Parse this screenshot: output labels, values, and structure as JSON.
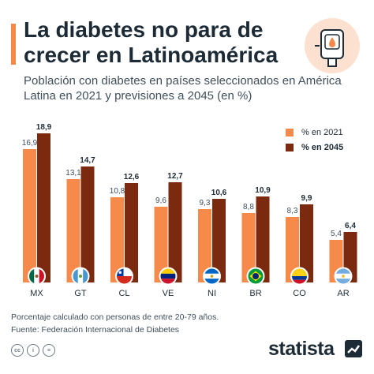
{
  "title": "La diabetes no para de crecer en Latinoamérica",
  "subtitle": "Población con diabetes en países seleccionados en América Latina en 2021 y previsiones a 2045 (en %)",
  "chart_data": {
    "type": "bar",
    "categories": [
      "MX",
      "GT",
      "CL",
      "VE",
      "NI",
      "BR",
      "CO",
      "AR"
    ],
    "series": [
      {
        "name": "% en 2021",
        "values": [
          16.9,
          13.1,
          10.8,
          9.6,
          9.3,
          8.8,
          8.3,
          5.4
        ],
        "color": "#f58a4b"
      },
      {
        "name": "% en 2045",
        "values": [
          18.9,
          14.7,
          12.6,
          12.7,
          10.6,
          10.9,
          9.9,
          6.4
        ],
        "color": "#7b2a0f"
      }
    ],
    "value_labels_2021": [
      "16,9",
      "13,1",
      "10,8",
      "9,6",
      "9,3",
      "8,8",
      "8,3",
      "5,4"
    ],
    "value_labels_2045": [
      "18,9",
      "14,7",
      "12,6",
      "12,7",
      "10,6",
      "10,9",
      "9,9",
      "6,4"
    ],
    "flags": [
      "mexico-flag-icon",
      "guatemala-flag-icon",
      "chile-flag-icon",
      "venezuela-flag-icon",
      "nicaragua-flag-icon",
      "brazil-flag-icon",
      "colombia-flag-icon",
      "argentina-flag-icon"
    ],
    "ylim": [
      0,
      20
    ],
    "grid": false,
    "legend_position": "top-right"
  },
  "legend": {
    "label_2021": "% en 2021",
    "label_2045": "% en 2045"
  },
  "footer": {
    "note": "Porcentaje calculado con personas de entre 20-79 años.",
    "source": "Fuente: Federación Internacional de Diabetes",
    "brand": "statista",
    "license_icons": [
      "cc",
      "i",
      "="
    ]
  },
  "colors": {
    "accent": "#f58a4b",
    "bar_2021": "#f58a4b",
    "bar_2045": "#7b2a0f",
    "text": "#1d2b36"
  }
}
